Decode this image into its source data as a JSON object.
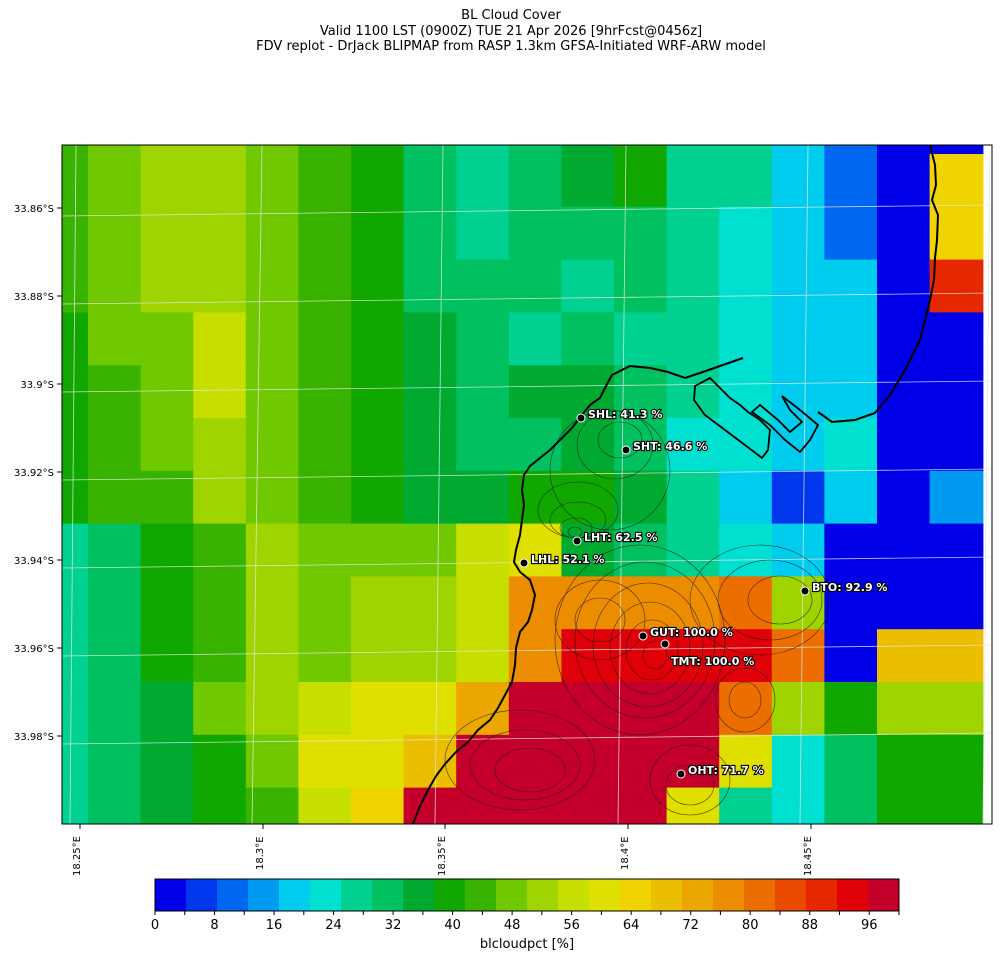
{
  "header": {
    "title": "BL Cloud Cover",
    "valid_line": "Valid 1100 LST (0900Z) TUE 21 Apr 2026 [9hrFcst@0456z]",
    "model_line": "FDV replot - DrJack BLIPMAP from RASP 1.3km GFSA-Initiated WRF-ARW model"
  },
  "map": {
    "lat_labels": [
      "33.86°S",
      "33.88°S",
      "33.9°S",
      "33.92°S",
      "33.94°S",
      "33.96°S",
      "33.98°S"
    ],
    "lon_labels": [
      "18.25°E",
      "18.3°E",
      "18.35°E",
      "18.4°E",
      "18.45°E"
    ],
    "stations": [
      {
        "code": "SHL",
        "label": "SHL: 41.3 %",
        "value": 41.3
      },
      {
        "code": "SHT",
        "label": "SHT: 46.6 %",
        "value": 46.6
      },
      {
        "code": "LHT",
        "label": "LHT: 62.5 %",
        "value": 62.5
      },
      {
        "code": "LHL",
        "label": "LHL: 52.1 %",
        "value": 52.1
      },
      {
        "code": "BTO",
        "label": "BTO: 92.9 %",
        "value": 92.9
      },
      {
        "code": "GUT",
        "label": "GUT: 100.0 %",
        "value": 100.0
      },
      {
        "code": "TMT",
        "label": "TMT: 100.0 %",
        "value": 100.0
      },
      {
        "code": "OHT",
        "label": "OHT: 71.7 %",
        "value": 71.7
      }
    ],
    "grid_values": [
      [
        44,
        50,
        52,
        52,
        46,
        42,
        38,
        30,
        28,
        32,
        36,
        38,
        28,
        28,
        18,
        12,
        4,
        4
      ],
      [
        44,
        50,
        52,
        52,
        46,
        42,
        38,
        30,
        28,
        32,
        36,
        38,
        28,
        28,
        18,
        12,
        4,
        64
      ],
      [
        42,
        50,
        52,
        52,
        48,
        42,
        38,
        32,
        28,
        30,
        32,
        32,
        28,
        24,
        18,
        12,
        4,
        64
      ],
      [
        42,
        50,
        52,
        52,
        48,
        42,
        38,
        32,
        30,
        30,
        28,
        32,
        28,
        24,
        18,
        18,
        4,
        88
      ],
      [
        40,
        46,
        50,
        58,
        48,
        42,
        38,
        36,
        32,
        28,
        32,
        28,
        28,
        24,
        18,
        18,
        4,
        4
      ],
      [
        38,
        44,
        48,
        56,
        48,
        42,
        38,
        36,
        32,
        34,
        34,
        32,
        28,
        24,
        18,
        18,
        4,
        4
      ],
      [
        38,
        42,
        46,
        52,
        48,
        44,
        38,
        36,
        32,
        32,
        36,
        32,
        24,
        22,
        18,
        24,
        4,
        4
      ],
      [
        38,
        42,
        44,
        52,
        48,
        44,
        40,
        36,
        34,
        40,
        38,
        36,
        26,
        20,
        8,
        20,
        4,
        14
      ],
      [
        28,
        32,
        38,
        44,
        54,
        50,
        48,
        48,
        56,
        62,
        34,
        30,
        26,
        24,
        20,
        4,
        4,
        4
      ],
      [
        26,
        32,
        38,
        44,
        52,
        50,
        52,
        52,
        58,
        78,
        76,
        76,
        78,
        80,
        52,
        4,
        4,
        4
      ],
      [
        26,
        32,
        38,
        44,
        52,
        50,
        52,
        52,
        58,
        76,
        92,
        92,
        92,
        92,
        80,
        4,
        68,
        68
      ],
      [
        26,
        30,
        36,
        46,
        52,
        58,
        62,
        62,
        72,
        96,
        96,
        96,
        96,
        82,
        52,
        38,
        52,
        52
      ],
      [
        26,
        30,
        36,
        38,
        48,
        62,
        62,
        70,
        96,
        96,
        96,
        96,
        96,
        60,
        22,
        32,
        38,
        38
      ],
      [
        26,
        30,
        36,
        38,
        44,
        56,
        64,
        96,
        96,
        96,
        96,
        96,
        60,
        28,
        22,
        32,
        38,
        38
      ],
      [
        26,
        30,
        36,
        38,
        44,
        56,
        78,
        96,
        96,
        96,
        88,
        72,
        16,
        4,
        14,
        32,
        38,
        38
      ],
      [
        26,
        30,
        36,
        38,
        44,
        56,
        78,
        96,
        96,
        60,
        88,
        60,
        12,
        4,
        10,
        32,
        38,
        38
      ]
    ]
  },
  "colorbar": {
    "ticks": [
      "0",
      "8",
      "16",
      "24",
      "32",
      "40",
      "48",
      "56",
      "64",
      "72",
      "80",
      "88",
      "96"
    ],
    "label": "blcloudpct [%]",
    "colors": [
      "#0000e8",
      "#0037ec",
      "#0068f0",
      "#009af0",
      "#00cdee",
      "#00e0d0",
      "#00d090",
      "#00c060",
      "#00aa30",
      "#10a800",
      "#38b400",
      "#70c800",
      "#a0d400",
      "#c6de00",
      "#e0e000",
      "#f0d400",
      "#ecbe00",
      "#eca600",
      "#ec8c00",
      "#ec6e00",
      "#ea4a00",
      "#e62800",
      "#e00008",
      "#c4002a"
    ]
  }
}
